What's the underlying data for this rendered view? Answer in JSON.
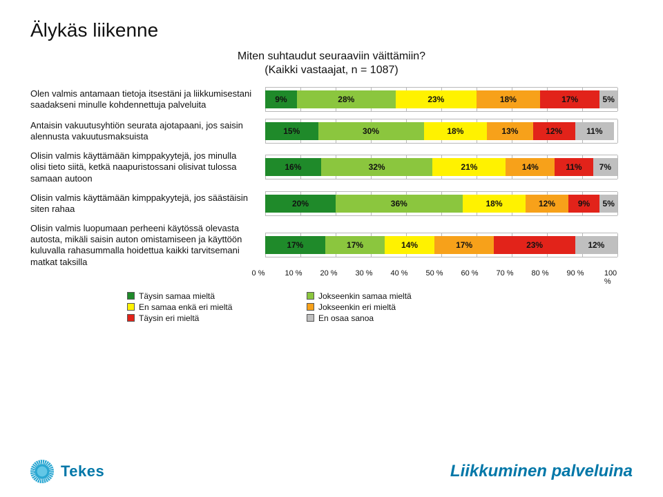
{
  "title": "Älykäs liikenne",
  "chart": {
    "type": "stacked-bar-horizontal",
    "title_line1": "Miten suhtaudut seuraaviin väittämiin?",
    "title_line2": "(Kaikki vastaajat, n = 1087)",
    "xlim": [
      0,
      100
    ],
    "xtick_step": 10,
    "xticks": [
      "0 %",
      "10 %",
      "20 %",
      "30 %",
      "40 %",
      "50 %",
      "60 %",
      "70 %",
      "80 %",
      "90 %",
      "100 %"
    ],
    "grid_color": "#b8b8b8",
    "segment_label_fontsize": 12,
    "segment_label_weight": "700",
    "series": [
      {
        "name": "Täysin samaa mieltä",
        "color": "#1f8a2a"
      },
      {
        "name": "Jokseenkin samaa mieltä",
        "color": "#8bc63e"
      },
      {
        "name": "En samaa enkä eri mieltä",
        "color": "#fff200"
      },
      {
        "name": "Jokseenkin eri mieltä",
        "color": "#f7a11a"
      },
      {
        "name": "Täysin eri mieltä",
        "color": "#e2231a"
      },
      {
        "name": "En osaa sanoa",
        "color": "#bfbfbf"
      }
    ],
    "rows": [
      {
        "label": "Olen valmis antamaan tietoja itsestäni ja liikkumisestani saadakseni minulle kohdennettuja palveluita",
        "values": [
          9,
          28,
          23,
          18,
          17,
          5
        ]
      },
      {
        "label": "Antaisin vakuutusyhtiön seurata ajotapaani, jos saisin alennusta vakuutusmaksuista",
        "values": [
          15,
          30,
          18,
          13,
          12,
          11
        ]
      },
      {
        "label": "Olisin valmis käyttämään kimppakyytejä, jos minulla olisi tieto siitä, ketkä naapuristossani olisivat tulossa samaan autoon",
        "values": [
          16,
          32,
          21,
          14,
          11,
          7
        ]
      },
      {
        "label": "Olisin valmis käyttämään kimppakyytejä, jos säästäisin siten rahaa",
        "values": [
          20,
          36,
          18,
          12,
          9,
          5
        ]
      },
      {
        "label": "Olisin valmis luopumaan perheeni käytössä olevasta autosta, mikäli saisin auton omistamiseen ja käyttöön kuluvalla rahasummalla hoidettua kaikki tarvitsemani matkat taksilla",
        "values": [
          17,
          17,
          14,
          17,
          23,
          12
        ]
      }
    ]
  },
  "legend_layout": [
    [
      "Täysin samaa mieltä",
      "Jokseenkin samaa mieltä"
    ],
    [
      "En samaa enkä eri mieltä",
      "Jokseenkin eri mieltä"
    ],
    [
      "Täysin eri mieltä",
      "En osaa sanoa"
    ]
  ],
  "footer": {
    "brand": "Tekes",
    "slogan": "Liikkuminen palveluina",
    "brand_color": "#0077a8"
  }
}
